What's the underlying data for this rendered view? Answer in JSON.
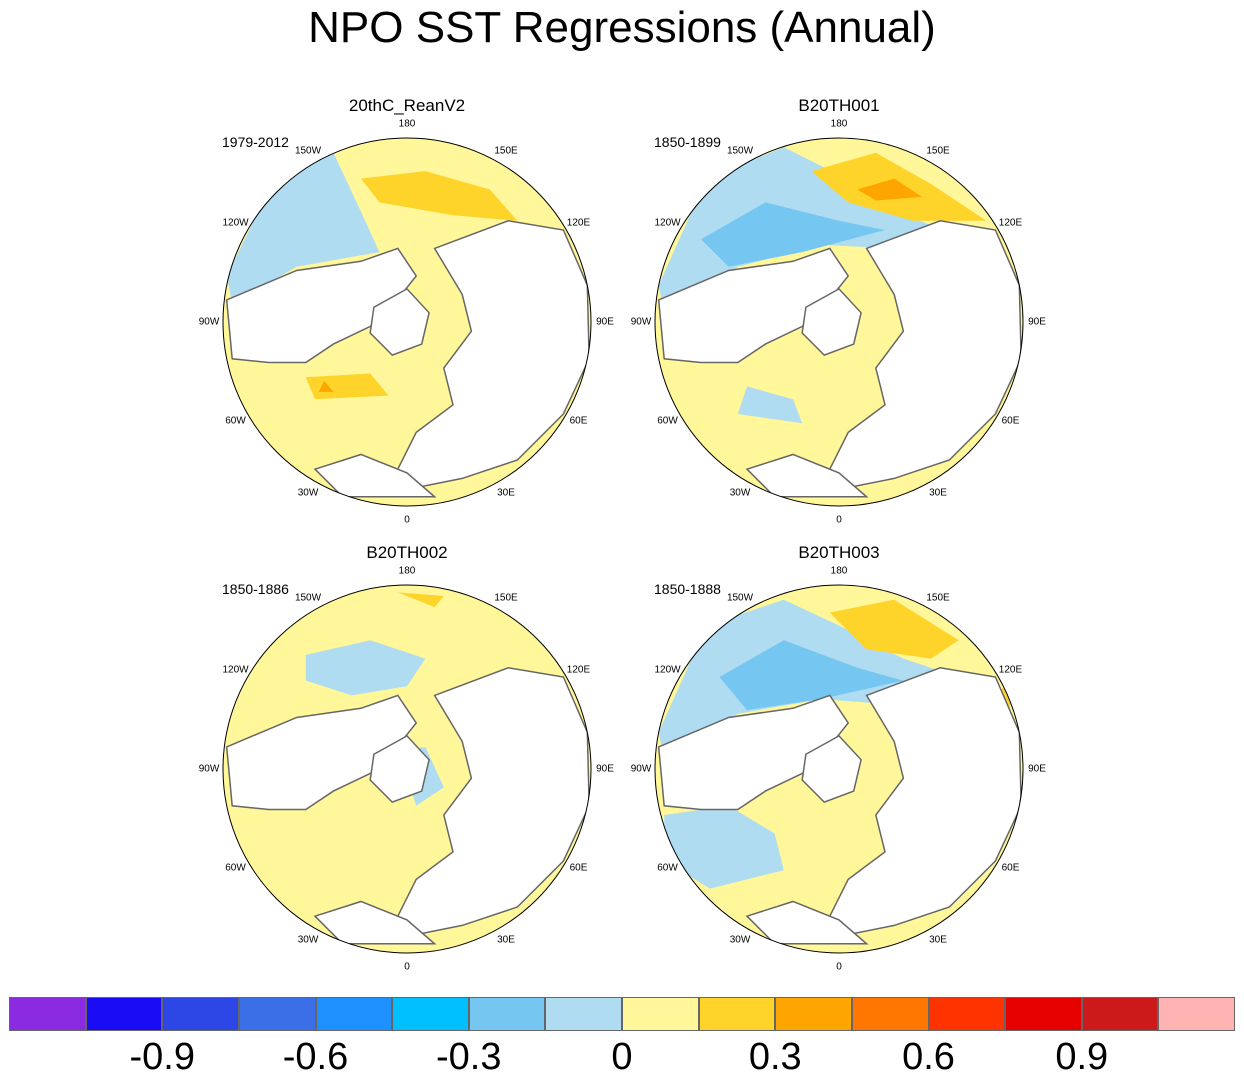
{
  "title": "NPO SST Regressions (Annual)",
  "panels": [
    {
      "title": "20thC_ReanV2",
      "period": "1979-2012"
    },
    {
      "title": "B20TH001",
      "period": "1850-1899"
    },
    {
      "title": "B20TH002",
      "period": "1850-1886"
    },
    {
      "title": "B20TH003",
      "period": "1850-1888"
    }
  ],
  "longitude_labels": [
    "180",
    "150E",
    "120E",
    "90E",
    "60E",
    "30E",
    "0",
    "30W",
    "60W",
    "90W",
    "120W",
    "150W"
  ],
  "colorbar": {
    "colors": [
      "#8a2be2",
      "#1a0df5",
      "#2d46e6",
      "#3a6fe8",
      "#1e90ff",
      "#00bfff",
      "#75c7f2",
      "#b0dcf2",
      "#fff799",
      "#ffd42a",
      "#ffa500",
      "#ff7700",
      "#ff3300",
      "#e60000",
      "#cc1a1a",
      "#ffb3b3"
    ],
    "labels": [
      "-0.9",
      "-0.6",
      "-0.3",
      "0",
      "0.3",
      "0.6",
      "0.9"
    ]
  },
  "fill_colors": {
    "ocean_neutral": "#fff799",
    "positive": "#ffd42a",
    "strong_positive": "#ffa500",
    "negative": "#b0dcf2",
    "strong_negative": "#75c7f2",
    "land": "#ffffff",
    "coast": "#666666"
  }
}
